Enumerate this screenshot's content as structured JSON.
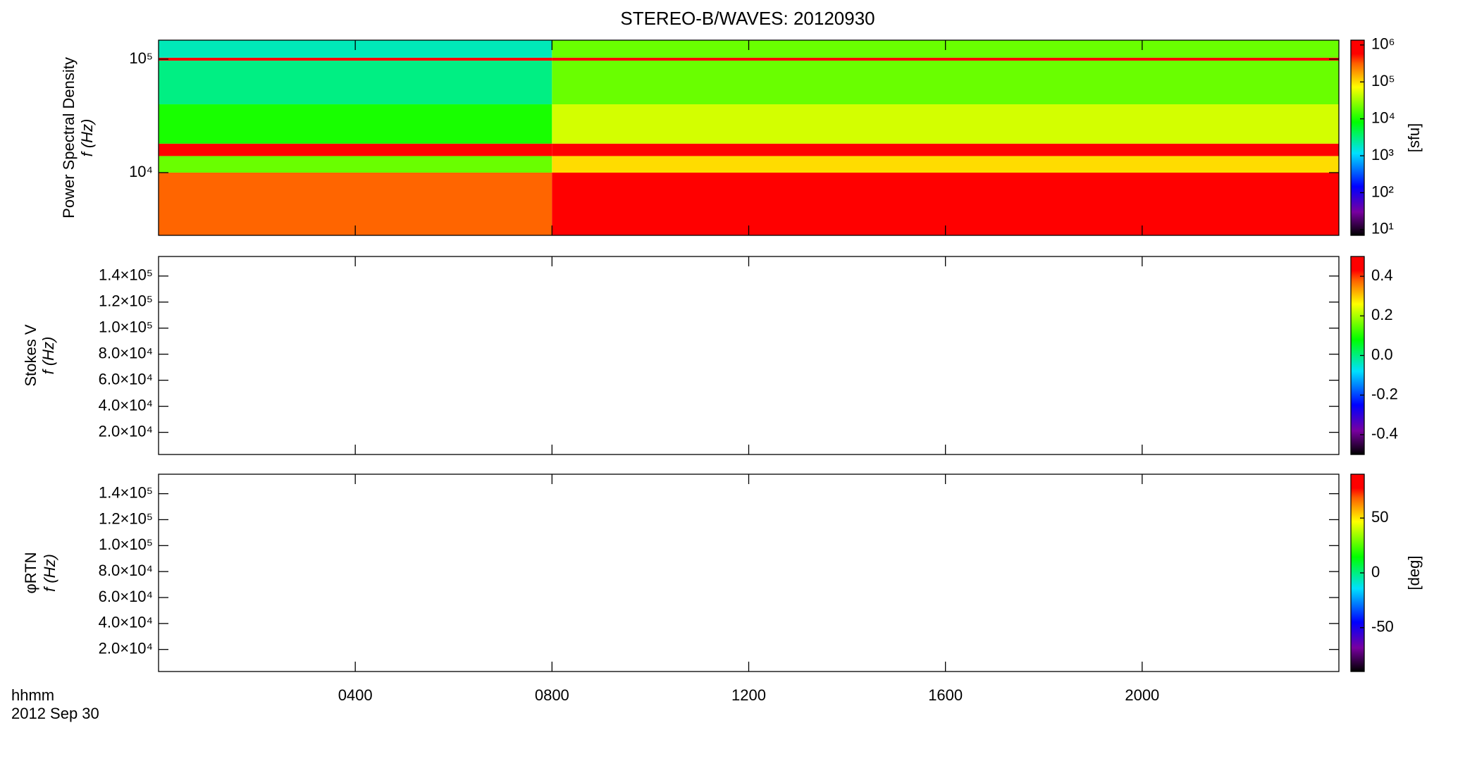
{
  "chart_data": {
    "type": "spectrogram",
    "title": "STEREO-B/WAVES: 20120930",
    "xlim": [
      0,
      1440
    ],
    "xticks": [
      {
        "value": 240,
        "label": "0400"
      },
      {
        "value": 480,
        "label": "0800"
      },
      {
        "value": 720,
        "label": "1200"
      },
      {
        "value": 960,
        "label": "1600"
      },
      {
        "value": 1200,
        "label": "2000"
      }
    ],
    "xlabel": [
      "hhmm",
      "2012 Sep 30"
    ],
    "colormap": [
      [
        0,
        "#000000"
      ],
      [
        0.12,
        "#7800a0"
      ],
      [
        0.25,
        "#0000ff"
      ],
      [
        0.42,
        "#00e0ff"
      ],
      [
        0.58,
        "#00ff00"
      ],
      [
        0.76,
        "#ffff00"
      ],
      [
        0.88,
        "#ff6000"
      ],
      [
        0.93,
        "#ff0000"
      ],
      [
        1,
        "#ff0000"
      ]
    ],
    "panels": [
      {
        "ylabel": [
          "Power Spectral Density",
          "f (Hz)"
        ],
        "ylog": true,
        "ylim": [
          2800,
          147000
        ],
        "yticks": [
          {
            "value": 10000,
            "label": "10⁴"
          },
          {
            "value": 100000,
            "label": "10⁵"
          }
        ],
        "spectrogram": {
          "times": [
            0,
            480,
            1440
          ],
          "freqs": [
            2800,
            10000,
            14000,
            18000,
            40000,
            97000,
            103000,
            147000
          ],
          "levels": [
            [
              300000,
              20000,
              1000000,
              10000,
              3000,
              1000000,
              2000
            ],
            [
              1000000,
              100000,
              1000000,
              50000,
              20000,
              1000000,
              20000
            ]
          ]
        },
        "colorbar": {
          "log": true,
          "clim": [
            7,
            1350000
          ],
          "ticks": [
            {
              "value": 10,
              "label": "10¹"
            },
            {
              "value": 100,
              "label": "10²"
            },
            {
              "value": 1000,
              "label": "10³"
            },
            {
              "value": 10000,
              "label": "10⁴"
            },
            {
              "value": 100000,
              "label": "10⁵"
            },
            {
              "value": 1000000,
              "label": "10⁶"
            }
          ],
          "label": "[sfu]"
        }
      },
      {
        "ylabel": [
          "Stokes V",
          "f (Hz)"
        ],
        "ylog": false,
        "ylim": [
          3000,
          155000
        ],
        "yticks": [
          {
            "value": 20000,
            "label": "2.0×10⁴"
          },
          {
            "value": 40000,
            "label": "4.0×10⁴"
          },
          {
            "value": 60000,
            "label": "6.0×10⁴"
          },
          {
            "value": 80000,
            "label": "8.0×10⁴"
          },
          {
            "value": 100000,
            "label": "1.0×10⁵"
          },
          {
            "value": 120000,
            "label": "1.2×10⁵"
          },
          {
            "value": 140000,
            "label": "1.4×10⁵"
          }
        ],
        "colorbar": {
          "log": false,
          "clim": [
            -0.5,
            0.5
          ],
          "ticks": [
            -0.4,
            -0.2,
            {
              "value": 0,
              "label": "0.0"
            },
            0.2,
            0.4
          ]
        }
      },
      {
        "ylabel": [
          "φRTN",
          "f (Hz)"
        ],
        "ylog": false,
        "ylim": [
          3000,
          155000
        ],
        "yticks": [
          {
            "value": 20000,
            "label": "2.0×10⁴"
          },
          {
            "value": 40000,
            "label": "4.0×10⁴"
          },
          {
            "value": 60000,
            "label": "6.0×10⁴"
          },
          {
            "value": 80000,
            "label": "8.0×10⁴"
          },
          {
            "value": 100000,
            "label": "1.0×10⁵"
          },
          {
            "value": 120000,
            "label": "1.2×10⁵"
          },
          {
            "value": 140000,
            "label": "1.4×10⁵"
          }
        ],
        "colorbar": {
          "log": false,
          "clim": [
            -90,
            90
          ],
          "ticks": [
            -50,
            0,
            50
          ],
          "label": "[deg]"
        }
      }
    ]
  }
}
